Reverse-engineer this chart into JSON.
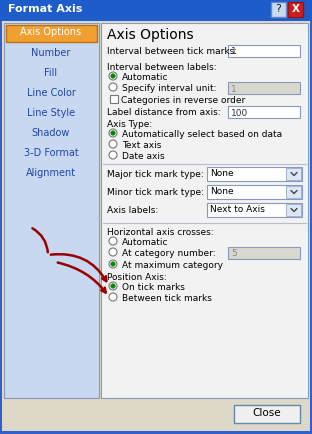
{
  "title": "Format Axis",
  "title_bar_color": "#1e5ccc",
  "title_text_color": "#ffffff",
  "sidebar_bg": "#c8d8f0",
  "sidebar_selected_bg": "#f0a030",
  "sidebar_selected_border": "#c07010",
  "sidebar_text_color": "#2244aa",
  "main_bg": "#eeeef0",
  "dialog_bg": "#ddd8c8",
  "outer_border": "#3060cc",
  "close_btn_color": "#cc2020",
  "arrow_color": "#990000",
  "radio_fill_color": "#009900",
  "input_border": "#8899bb",
  "input_disabled_bg": "#d8d8cc",
  "dropdown_bg": "#dce6f4",
  "sidebar_items": [
    "Number",
    "Fill",
    "Line Color",
    "Line Style",
    "Shadow",
    "3-D Format",
    "Alignment"
  ]
}
